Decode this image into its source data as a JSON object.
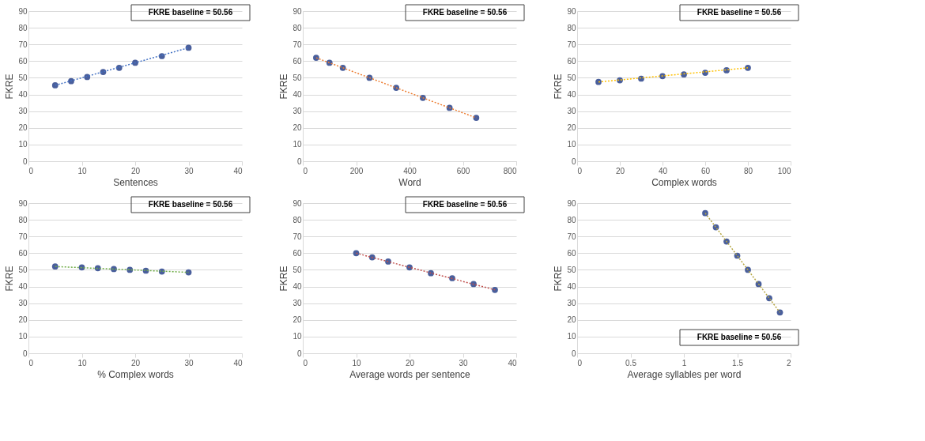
{
  "chart_data": [
    {
      "type": "scatter",
      "xlabel": "Sentences",
      "ylabel": "FKRE",
      "annotations": [
        "FKRE baseline = 50.56"
      ],
      "xlim": [
        0,
        40
      ],
      "xticks": [
        0,
        10,
        20,
        30,
        40
      ],
      "ylim": [
        0,
        90
      ],
      "yticks": [
        0,
        10,
        20,
        30,
        40,
        50,
        60,
        70,
        80,
        90
      ],
      "grid": "y",
      "series": [
        {
          "marker": "circle",
          "color": "#4a5f9c",
          "x": [
            5,
            8,
            11,
            14,
            17,
            20,
            25,
            30
          ],
          "values": [
            45.5,
            48,
            50.5,
            53.5,
            56,
            59,
            63,
            68
          ]
        },
        {
          "type": "line",
          "color": "#4472c4",
          "line_style": "dotted",
          "x": [
            5,
            30
          ],
          "values": [
            45.5,
            68
          ]
        }
      ]
    },
    {
      "type": "scatter",
      "xlabel": "Word",
      "ylabel": "FKRE",
      "annotations": [
        "FKRE baseline = 50.56"
      ],
      "xlim": [
        0,
        800
      ],
      "xticks": [
        0,
        200,
        400,
        600,
        800
      ],
      "ylim": [
        0,
        90
      ],
      "yticks": [
        0,
        10,
        20,
        30,
        40,
        50,
        60,
        70,
        80,
        90
      ],
      "grid": "y",
      "series": [
        {
          "marker": "circle",
          "color": "#4a5f9c",
          "x": [
            50,
            100,
            150,
            250,
            350,
            450,
            550,
            650
          ],
          "values": [
            62,
            59,
            56,
            50,
            44,
            38,
            32,
            26
          ]
        },
        {
          "type": "line",
          "color": "#ed7d31",
          "line_style": "dotted",
          "x": [
            50,
            650
          ],
          "values": [
            62,
            26
          ]
        }
      ]
    },
    {
      "type": "scatter",
      "xlabel": "Complex words",
      "ylabel": "FKRE",
      "annotations": [
        "FKRE baseline = 50.56"
      ],
      "xlim": [
        0,
        100
      ],
      "xticks": [
        0,
        20,
        40,
        60,
        80,
        100
      ],
      "ylim": [
        0,
        90
      ],
      "yticks": [
        0,
        10,
        20,
        30,
        40,
        50,
        60,
        70,
        80,
        90
      ],
      "grid": "y",
      "series": [
        {
          "marker": "circle",
          "color": "#4a5f9c",
          "x": [
            10,
            20,
            30,
            40,
            50,
            60,
            70,
            80
          ],
          "values": [
            47.5,
            48.5,
            49.5,
            51,
            52,
            53,
            54.5,
            56
          ]
        },
        {
          "type": "line",
          "color": "#ffc000",
          "line_style": "dotted",
          "x": [
            10,
            80
          ],
          "values": [
            47.5,
            56
          ]
        }
      ]
    },
    {
      "type": "scatter",
      "xlabel": "% Complex words",
      "ylabel": "FKRE",
      "annotations": [
        "FKRE baseline = 50.56"
      ],
      "xlim": [
        0,
        40
      ],
      "xticks": [
        0,
        10,
        20,
        30,
        40
      ],
      "ylim": [
        0,
        90
      ],
      "yticks": [
        0,
        10,
        20,
        30,
        40,
        50,
        60,
        70,
        80,
        90
      ],
      "grid": "y",
      "series": [
        {
          "marker": "circle",
          "color": "#4a5f9c",
          "x": [
            5,
            10,
            13,
            16,
            19,
            22,
            25,
            30
          ],
          "values": [
            52,
            51.5,
            51,
            50.5,
            50,
            49.5,
            49,
            48.5
          ]
        },
        {
          "type": "line",
          "color": "#70ad47",
          "line_style": "dotted",
          "x": [
            5,
            30
          ],
          "values": [
            52,
            48.5
          ]
        }
      ]
    },
    {
      "type": "scatter",
      "xlabel": "Average words per sentence",
      "ylabel": "FKRE",
      "annotations": [
        "FKRE baseline = 50.56"
      ],
      "xlim": [
        0,
        40
      ],
      "xticks": [
        0,
        10,
        20,
        30,
        40
      ],
      "ylim": [
        0,
        90
      ],
      "yticks": [
        0,
        10,
        20,
        30,
        40,
        50,
        60,
        70,
        80,
        90
      ],
      "grid": "y",
      "series": [
        {
          "marker": "circle",
          "color": "#4a5f9c",
          "x": [
            10,
            13,
            16,
            20,
            24,
            28,
            32,
            36
          ],
          "values": [
            60,
            57.5,
            55,
            51.5,
            48,
            45,
            41.5,
            38
          ]
        },
        {
          "type": "line",
          "color": "#c0504d",
          "line_style": "dotted",
          "x": [
            10,
            36
          ],
          "values": [
            60,
            38
          ]
        }
      ]
    },
    {
      "type": "scatter",
      "xlabel": "Average syllables per word",
      "ylabel": "FKRE",
      "annotations": [
        "FKRE baseline = 50.56"
      ],
      "xlim": [
        0,
        2
      ],
      "xticks": [
        0,
        0.5,
        1,
        1.5,
        2
      ],
      "ylim": [
        0,
        90
      ],
      "yticks": [
        0,
        10,
        20,
        30,
        40,
        50,
        60,
        70,
        80,
        90
      ],
      "grid": "y",
      "series": [
        {
          "marker": "circle",
          "color": "#4a5f9c",
          "x": [
            1.2,
            1.3,
            1.4,
            1.5,
            1.6,
            1.7,
            1.8,
            1.9
          ],
          "values": [
            84,
            75.5,
            67,
            58.5,
            50,
            41.5,
            33,
            24.5
          ]
        },
        {
          "type": "line",
          "color": "#b5a642",
          "line_style": "dotted",
          "x": [
            1.2,
            1.9
          ],
          "values": [
            84,
            24.5
          ]
        }
      ]
    }
  ]
}
